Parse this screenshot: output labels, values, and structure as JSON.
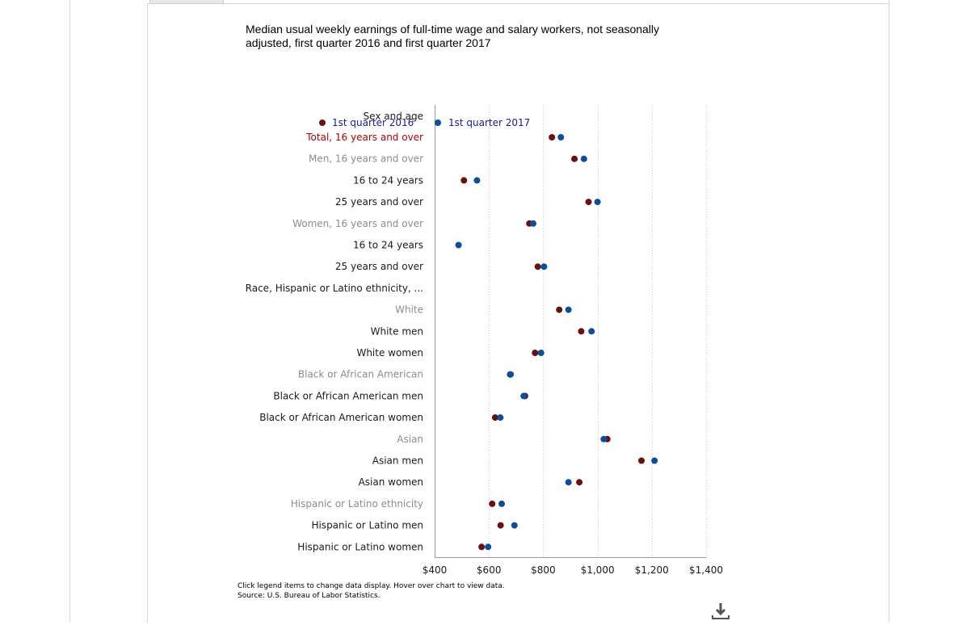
{
  "title": "Median usual weekly earnings of full-time wage and salary workers, not seasonally adjusted, first quarter 2016 and first quarter 2017",
  "footnote_1": "Click legend items to change data display. Hover over chart to view data.",
  "footnote_2": "Source: U.S. Bureau of Labor Statistics.",
  "download_icon": "download-icon",
  "chart_data": {
    "type": "scatter",
    "category_axis_label": "Sex and age",
    "categories": [
      {
        "label": "Total, 16 years and over",
        "style": "red"
      },
      {
        "label": "Men, 16 years and over",
        "style": "gray"
      },
      {
        "label": "16 to 24 years",
        "style": "black"
      },
      {
        "label": "25 years and over",
        "style": "black"
      },
      {
        "label": "Women, 16 years and over",
        "style": "gray"
      },
      {
        "label": "16 to 24 years",
        "style": "black"
      },
      {
        "label": "25 years and over",
        "style": "black"
      },
      {
        "label": "Race, Hispanic or Latino ethnicity, ...",
        "style": "bold"
      },
      {
        "label": "White",
        "style": "gray"
      },
      {
        "label": "White men",
        "style": "black"
      },
      {
        "label": "White women",
        "style": "black"
      },
      {
        "label": "Black or African American",
        "style": "gray"
      },
      {
        "label": "Black or African American men",
        "style": "black"
      },
      {
        "label": "Black or African American women",
        "style": "black"
      },
      {
        "label": "Asian",
        "style": "gray"
      },
      {
        "label": "Asian men",
        "style": "black"
      },
      {
        "label": "Asian women",
        "style": "black"
      },
      {
        "label": "Hispanic or Latino ethnicity",
        "style": "gray"
      },
      {
        "label": "Hispanic or Latino men",
        "style": "black"
      },
      {
        "label": "Hispanic or Latino women",
        "style": "black"
      }
    ],
    "series": [
      {
        "name": "1st quarter 2016",
        "color": "#6b0f0f",
        "values": [
          832,
          915,
          508,
          967,
          749,
          null,
          780,
          null,
          859,
          940,
          770,
          678,
          733,
          623,
          1036,
          1162,
          933,
          612,
          643,
          573
        ]
      },
      {
        "name": "1st quarter 2017",
        "color": "#0b4f9c",
        "values": [
          865,
          950,
          556,
          1000,
          763,
          488,
          803,
          null,
          893,
          978,
          792,
          680,
          728,
          642,
          1023,
          1210,
          893,
          647,
          694,
          597
        ]
      }
    ],
    "x_ticks": [
      "$400",
      "$600",
      "$800",
      "$1,000",
      "$1,200",
      "$1,400"
    ],
    "xlim": [
      400,
      1400
    ],
    "grid": true,
    "legend_position": "top-left"
  },
  "colors": {
    "red_label": "#b30000",
    "gray_label": "#8c8c8c",
    "black_label": "#1a1a1a",
    "legend_text": "#1a1a99"
  }
}
